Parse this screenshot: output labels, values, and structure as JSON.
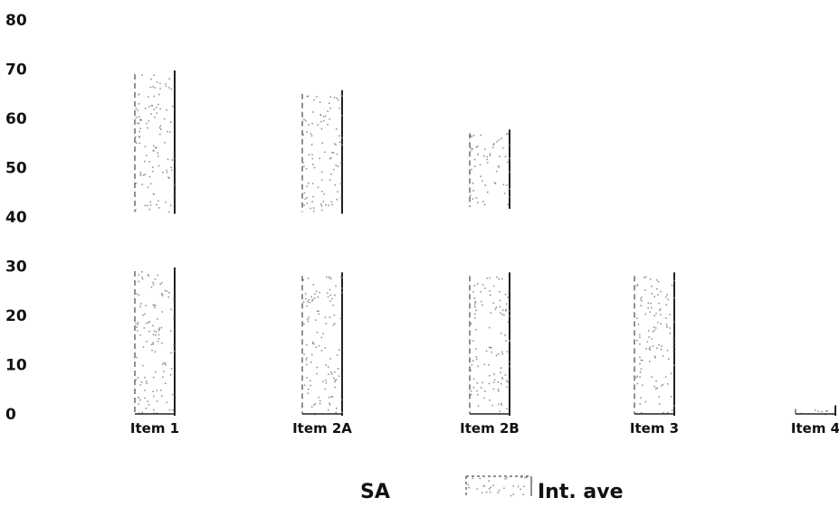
{
  "chart_data": {
    "type": "bar",
    "categories": [
      "Item 1",
      "Item 2A",
      "Item 2B",
      "Item 3",
      "Item 4"
    ],
    "series": [
      {
        "name": "Int. ave",
        "values": [
          29,
          28,
          28,
          28,
          1
        ]
      },
      {
        "name": "",
        "values": [
          [
            41,
            69
          ],
          [
            41,
            65
          ],
          [
            42,
            57
          ],
          null,
          null
        ]
      }
    ],
    "ylim": [
      0,
      80
    ],
    "yticks": [
      0,
      10,
      20,
      30,
      40,
      50,
      60,
      70,
      80
    ],
    "legend": {
      "position": "bottom",
      "entries": [
        "SA",
        "Int. ave"
      ]
    },
    "grid": false,
    "colors": {
      "bar_edge": "#222222",
      "speckle": "#8a8a8a",
      "text": "#111111"
    }
  }
}
